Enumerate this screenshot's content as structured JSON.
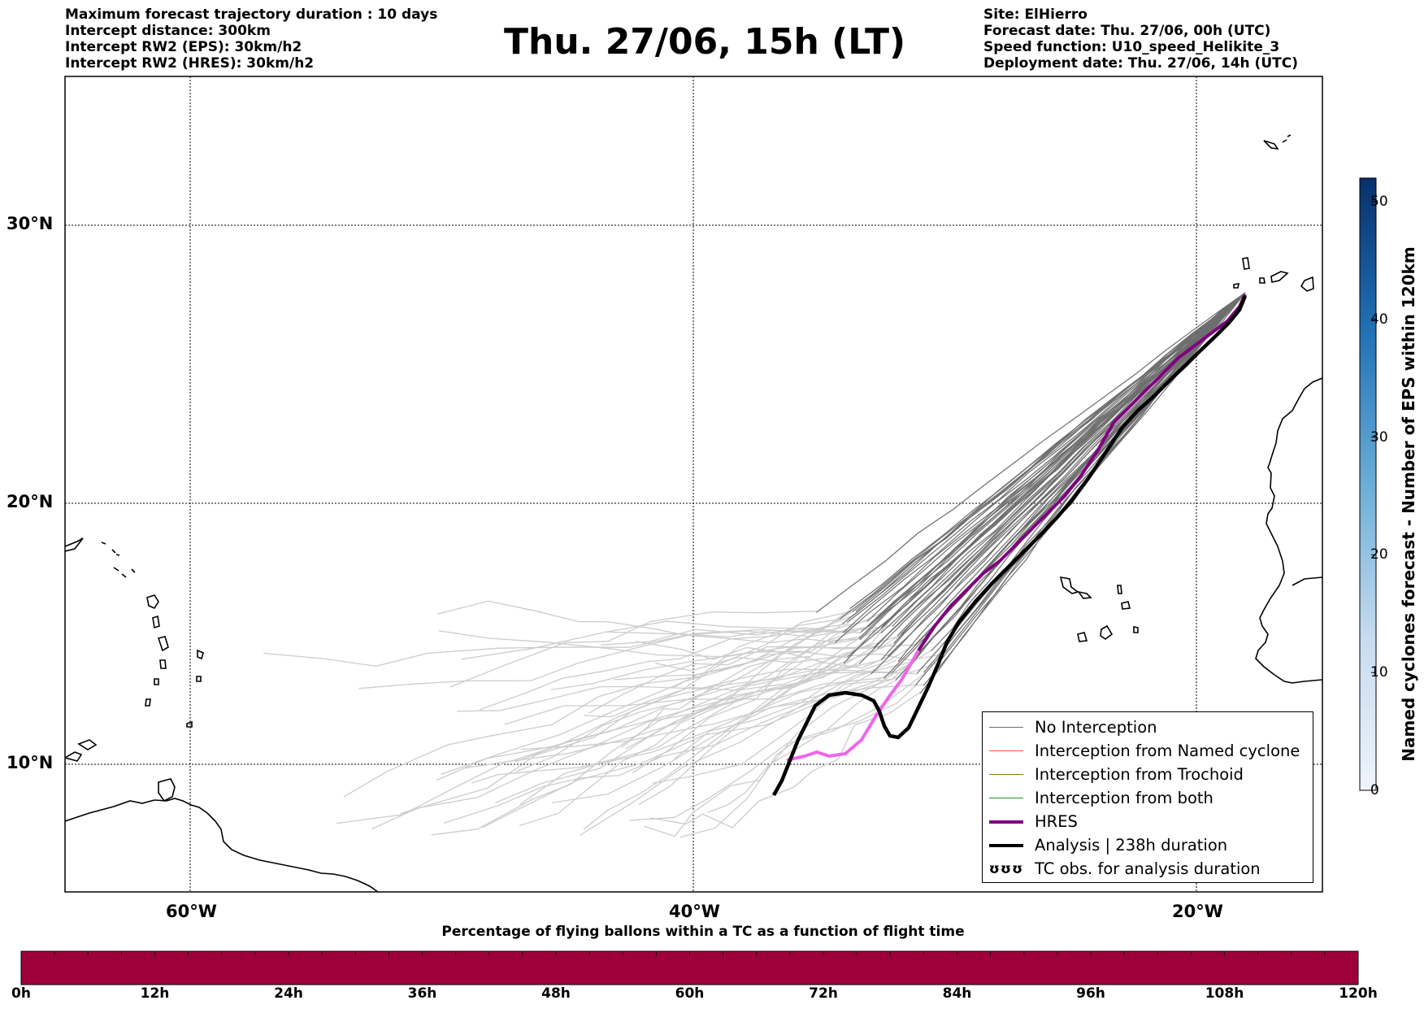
{
  "header_left": {
    "line1": "Maximum forecast trajectory duration : 10 days",
    "line2": "Intercept distance: 300km",
    "line3": "Intercept RW2 (EPS):  30km/h2",
    "line4": "Intercept RW2 (HRES): 30km/h2"
  },
  "title": "Thu. 27/06, 15h (LT)",
  "header_right": {
    "line1": "Site: ElHierro",
    "line2": "Forecast date: Thu. 27/06, 00h (UTC)",
    "line3": "Speed function: U10_speed_Helikite_3",
    "line4": "Deployment date: Thu. 27/06, 14h (UTC)"
  },
  "map": {
    "lat_labels": [
      "30°N",
      "20°N",
      "10°N"
    ],
    "lon_labels": [
      "60°W",
      "40°W",
      "20°W"
    ],
    "lat_values": [
      30,
      20,
      10
    ],
    "lon_values": [
      -60,
      -40,
      -20
    ],
    "extent": {
      "lon_min": -65,
      "lon_max": -15,
      "lat_min": 5.5,
      "lat_max": 34.7
    },
    "launch_site": {
      "lon": -18.0,
      "lat": 27.7
    },
    "colors": {
      "no_interception": "#6e6e6e",
      "named_cyclone": "#ff5722",
      "trochoid": "#7a7a1a",
      "both": "#228b22",
      "hres": "#800080",
      "hres_late": "#ee66ee",
      "analysis": "#000000",
      "faded": "#cccccc"
    }
  },
  "legend": {
    "no_interception": "No Interception",
    "named_cyclone": "Interception from Named cyclone",
    "trochoid": "Interception from Trochoid",
    "both": "Interception from both",
    "hres": "HRES",
    "analysis": "Analysis | 238h duration",
    "tc_obs": "TC obs. for analysis duration",
    "tc_glyph": "ʊʊʊ"
  },
  "percent_colorbar": {
    "caption": "Percentage of flying ballons within a TC as a function of flight time",
    "ticks": [
      "0h",
      "12h",
      "24h",
      "36h",
      "48h",
      "60h",
      "72h",
      "84h",
      "96h",
      "108h",
      "120h"
    ],
    "color": "#9e003a"
  },
  "cyclone_colorbar": {
    "label": "Named cyclones forecast - Number of EPS within 120km",
    "ticks": [
      "0",
      "10",
      "20",
      "30",
      "40",
      "50"
    ],
    "min": 0,
    "max": 52,
    "color_low": "#e8f0f9",
    "color_high": "#08306b"
  }
}
